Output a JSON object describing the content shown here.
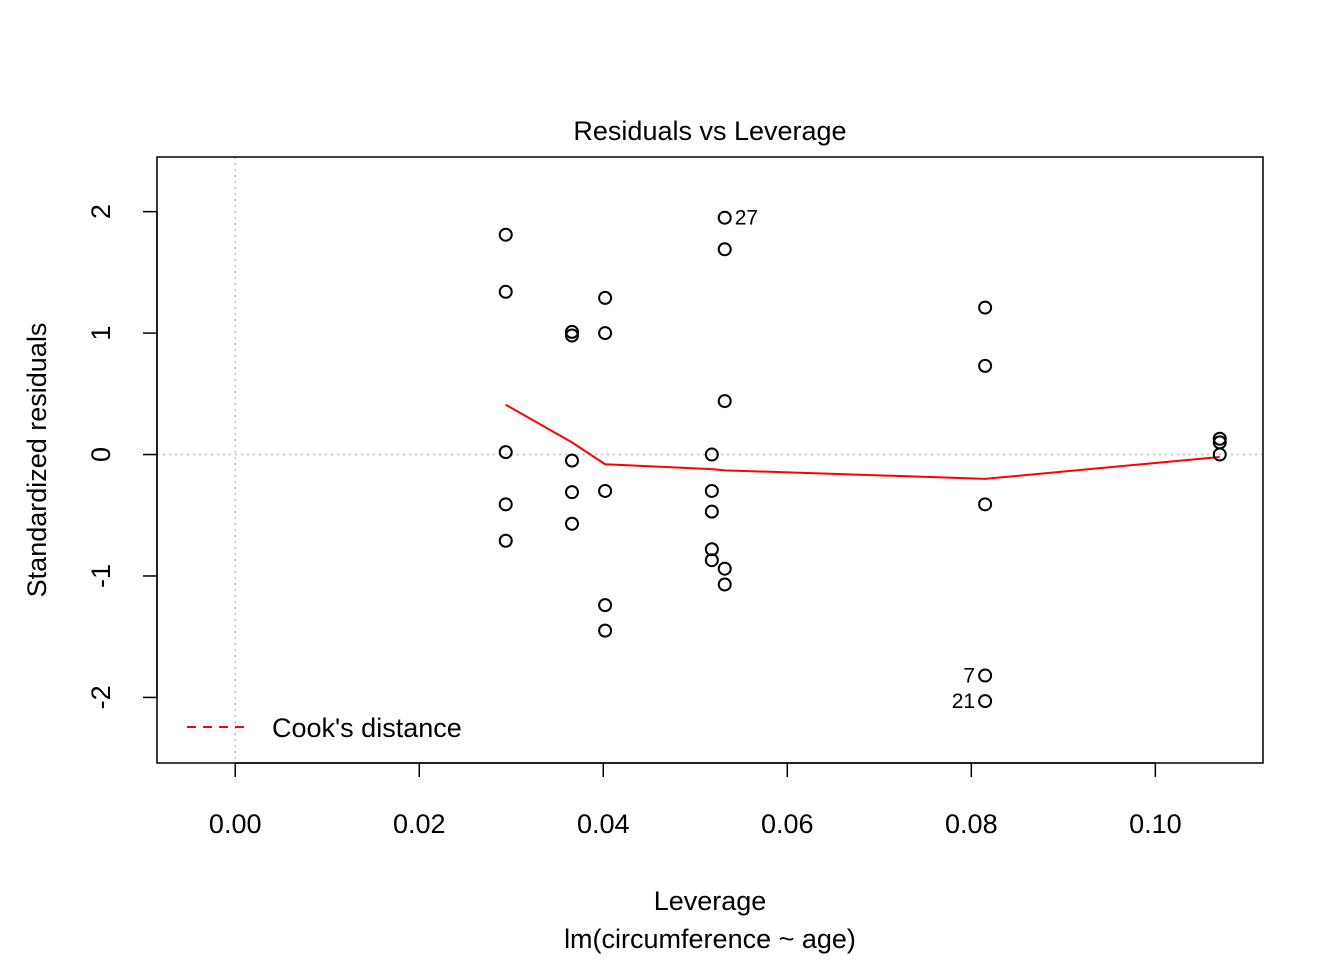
{
  "chart_data": {
    "type": "scatter",
    "title": "Residuals vs Leverage",
    "xlabel": "Leverage",
    "subtitle": "lm(circumference ~ age)",
    "ylabel": "Standardized residuals",
    "xlim": [
      -0.0085,
      0.1117
    ],
    "ylim": [
      -2.54,
      2.45
    ],
    "x_ticks": [
      "0.00",
      "0.02",
      "0.04",
      "0.06",
      "0.08",
      "0.10"
    ],
    "x_tick_values": [
      0,
      0.02,
      0.04,
      0.06,
      0.08,
      0.1
    ],
    "y_ticks": [
      "-2",
      "-1",
      "0",
      "1",
      "2"
    ],
    "y_tick_values": [
      -2,
      -1,
      0,
      1,
      2
    ],
    "reference_lines": {
      "x": 0,
      "y": 0,
      "style": "dotted",
      "color": "#bebebe"
    },
    "points": [
      {
        "x": 0.0294,
        "y": 1.81
      },
      {
        "x": 0.0294,
        "y": 1.34
      },
      {
        "x": 0.0294,
        "y": 0.02
      },
      {
        "x": 0.0294,
        "y": -0.41
      },
      {
        "x": 0.0294,
        "y": -0.71
      },
      {
        "x": 0.0366,
        "y": 1.01
      },
      {
        "x": 0.0366,
        "y": 0.98
      },
      {
        "x": 0.0366,
        "y": -0.05
      },
      {
        "x": 0.0366,
        "y": -0.31
      },
      {
        "x": 0.0366,
        "y": -0.57
      },
      {
        "x": 0.0402,
        "y": 1.29
      },
      {
        "x": 0.0402,
        "y": 1.0
      },
      {
        "x": 0.0402,
        "y": -0.3
      },
      {
        "x": 0.0402,
        "y": -1.24
      },
      {
        "x": 0.0402,
        "y": -1.45
      },
      {
        "x": 0.0518,
        "y": 0.0
      },
      {
        "x": 0.0518,
        "y": -0.3
      },
      {
        "x": 0.0518,
        "y": -0.47
      },
      {
        "x": 0.0518,
        "y": -0.78
      },
      {
        "x": 0.0518,
        "y": -0.87
      },
      {
        "x": 0.0532,
        "y": 1.95,
        "label": "27",
        "label_side": "right"
      },
      {
        "x": 0.0532,
        "y": 1.69
      },
      {
        "x": 0.0532,
        "y": 0.44
      },
      {
        "x": 0.0532,
        "y": -0.94
      },
      {
        "x": 0.0532,
        "y": -1.07
      },
      {
        "x": 0.0815,
        "y": 1.21
      },
      {
        "x": 0.0815,
        "y": 0.73
      },
      {
        "x": 0.0815,
        "y": -0.41
      },
      {
        "x": 0.0815,
        "y": -1.82,
        "label": "7",
        "label_side": "left"
      },
      {
        "x": 0.0815,
        "y": -2.03,
        "label": "21",
        "label_side": "left"
      },
      {
        "x": 0.107,
        "y": 0.13
      },
      {
        "x": 0.107,
        "y": 0.1
      },
      {
        "x": 0.107,
        "y": 0.0
      }
    ],
    "smooth_line": {
      "color": "#ff0000",
      "x": [
        0.0294,
        0.0366,
        0.0402,
        0.0518,
        0.0532,
        0.0815,
        0.107
      ],
      "y": [
        0.41,
        0.1,
        -0.08,
        -0.12,
        -0.13,
        -0.2,
        -0.02
      ]
    },
    "legend": {
      "position": "bottom-left",
      "label": "Cook's distance",
      "color": "#ff0000",
      "line_style": "dashed"
    }
  }
}
